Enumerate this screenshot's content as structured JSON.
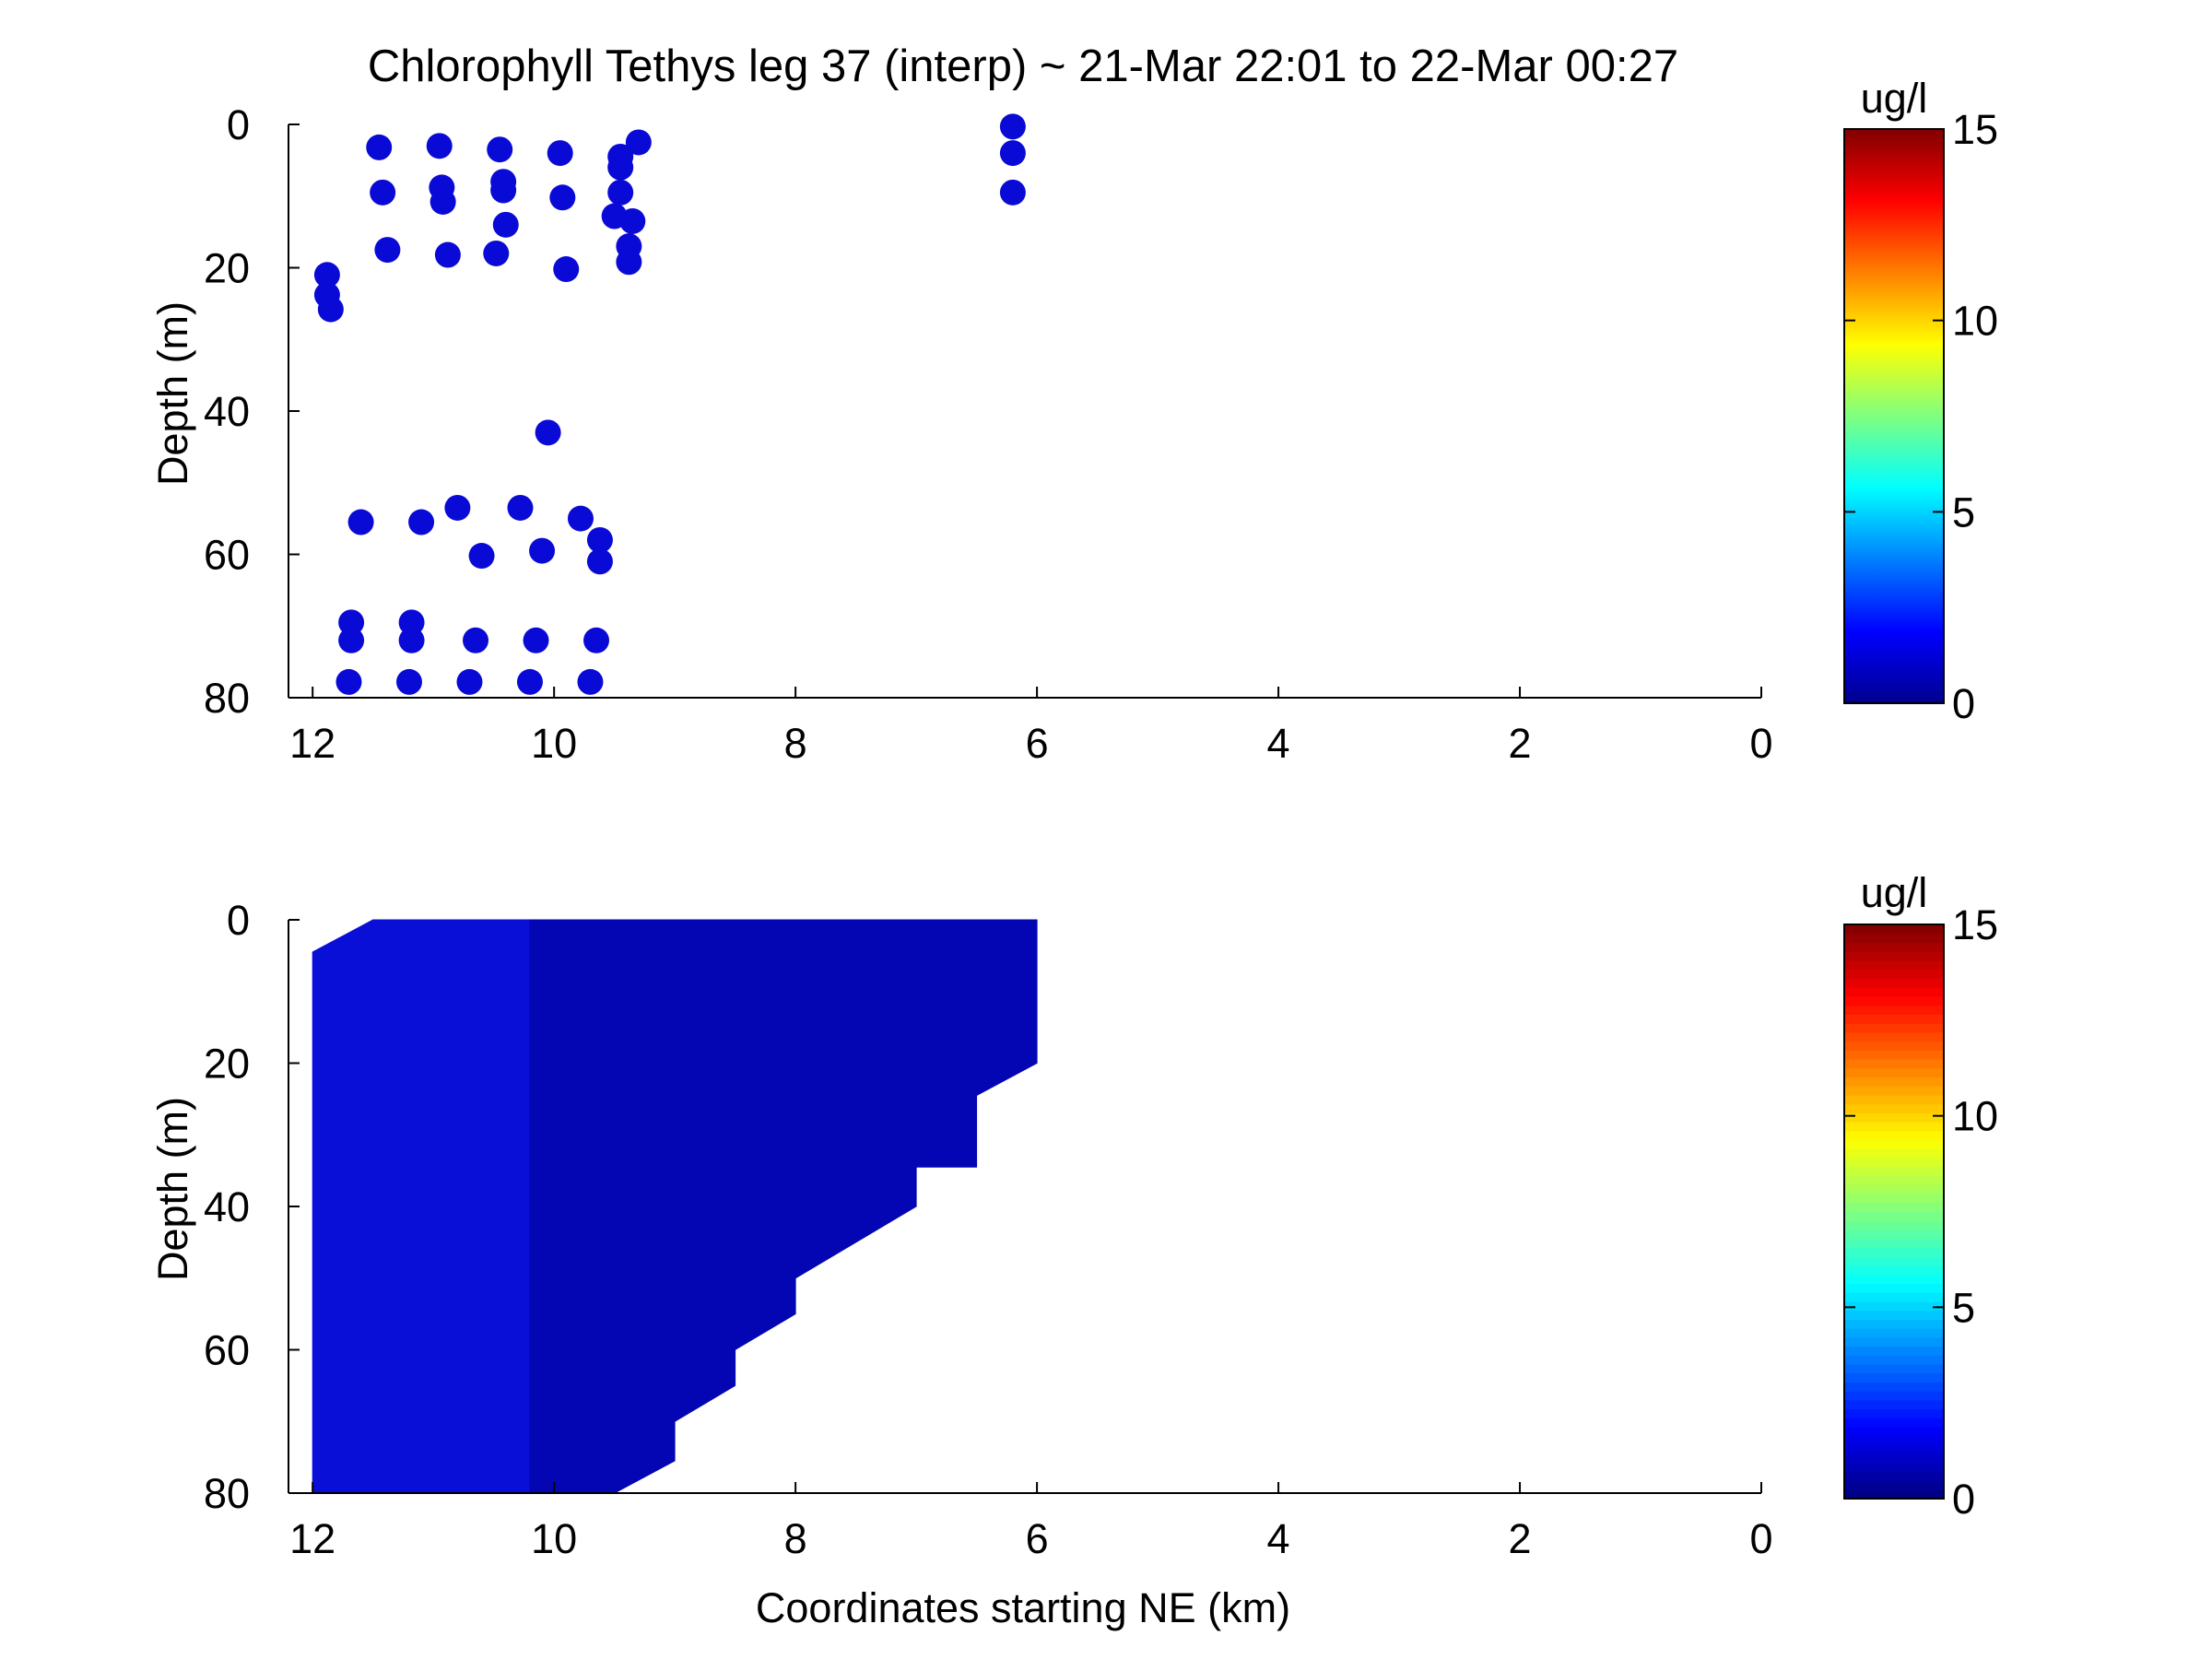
{
  "chart_data": [
    {
      "type": "scatter",
      "title": "Chlorophyll Tethys leg 37 (interp) ~ 21-Mar 22:01 to 22-Mar 00:27",
      "xlabel": "",
      "ylabel": "Depth (m)",
      "xlim": [
        12.2,
        0
      ],
      "ylim": [
        0,
        80
      ],
      "y_reversed": true,
      "xticks": [
        "12",
        "10",
        "8",
        "6",
        "4",
        "2",
        "0"
      ],
      "yticks": [
        "0",
        "20",
        "40",
        "60",
        "80"
      ],
      "colorbar": {
        "label": "ug/l",
        "min": 0,
        "max": 15,
        "ticks": [
          "0",
          "5",
          "10",
          "15"
        ],
        "colormap": "jet"
      },
      "marker_color": "#0a0ad6",
      "points": [
        [
          11.45,
          3.2
        ],
        [
          10.95,
          3.0
        ],
        [
          10.45,
          3.5
        ],
        [
          9.95,
          4.0
        ],
        [
          9.45,
          4.5
        ],
        [
          9.3,
          2.5
        ],
        [
          11.42,
          9.5
        ],
        [
          10.93,
          8.8
        ],
        [
          10.42,
          8.0
        ],
        [
          10.42,
          9.2
        ],
        [
          9.93,
          10.2
        ],
        [
          9.45,
          9.5
        ],
        [
          9.45,
          6.0
        ],
        [
          10.92,
          10.8
        ],
        [
          9.5,
          12.8
        ],
        [
          9.35,
          13.5
        ],
        [
          10.4,
          14.0
        ],
        [
          11.38,
          17.5
        ],
        [
          10.88,
          18.2
        ],
        [
          10.48,
          18.0
        ],
        [
          9.9,
          20.2
        ],
        [
          9.38,
          17.0
        ],
        [
          9.38,
          19.2
        ],
        [
          11.88,
          21.0
        ],
        [
          11.88,
          23.8
        ],
        [
          11.85,
          25.8
        ],
        [
          10.05,
          43.0
        ],
        [
          11.6,
          55.5
        ],
        [
          11.1,
          55.5
        ],
        [
          10.8,
          53.5
        ],
        [
          10.28,
          53.5
        ],
        [
          9.78,
          55.0
        ],
        [
          9.62,
          58.0
        ],
        [
          9.62,
          61.0
        ],
        [
          10.6,
          60.2
        ],
        [
          10.1,
          59.5
        ],
        [
          11.68,
          69.5
        ],
        [
          11.18,
          69.5
        ],
        [
          11.68,
          72.0
        ],
        [
          11.18,
          72.0
        ],
        [
          10.65,
          72.0
        ],
        [
          10.15,
          72.0
        ],
        [
          9.65,
          72.0
        ],
        [
          11.7,
          77.8
        ],
        [
          11.2,
          77.8
        ],
        [
          10.7,
          77.8
        ],
        [
          10.2,
          77.8
        ],
        [
          9.7,
          77.8
        ],
        [
          6.2,
          0.3
        ],
        [
          6.2,
          4.0
        ],
        [
          6.2,
          9.5
        ]
      ]
    },
    {
      "type": "heatmap",
      "title": "",
      "xlabel": "Coordinates starting NE (km)",
      "ylabel": "Depth (m)",
      "xlim": [
        12.2,
        0
      ],
      "ylim": [
        0,
        80
      ],
      "y_reversed": true,
      "xticks": [
        "12",
        "10",
        "8",
        "6",
        "4",
        "2",
        "0"
      ],
      "yticks": [
        "0",
        "20",
        "40",
        "60",
        "80"
      ],
      "colorbar": {
        "label": "ug/l",
        "min": 0,
        "max": 15,
        "ticks": [
          "0",
          "5",
          "10",
          "15"
        ],
        "colormap": "jet"
      },
      "regions": [
        {
          "value": 1.0,
          "color": "#0a0fd8",
          "polygon": [
            [
              12.0,
              4.5
            ],
            [
              11.5,
              0
            ],
            [
              10.2,
              0
            ],
            [
              10.2,
              80
            ],
            [
              12.0,
              80
            ]
          ]
        },
        {
          "value": 0.6,
          "color": "#0306b2",
          "polygon": [
            [
              10.2,
              0
            ],
            [
              6.0,
              0
            ],
            [
              6.0,
              20
            ],
            [
              6.5,
              24.5
            ],
            [
              6.5,
              34.5
            ],
            [
              7.0,
              34.5
            ],
            [
              7.0,
              40
            ],
            [
              8.0,
              50
            ],
            [
              8.0,
              55
            ],
            [
              8.5,
              60
            ],
            [
              8.5,
              65
            ],
            [
              9.0,
              70
            ],
            [
              9.0,
              75.5
            ],
            [
              9.5,
              80
            ],
            [
              10.2,
              80
            ]
          ]
        }
      ]
    }
  ]
}
